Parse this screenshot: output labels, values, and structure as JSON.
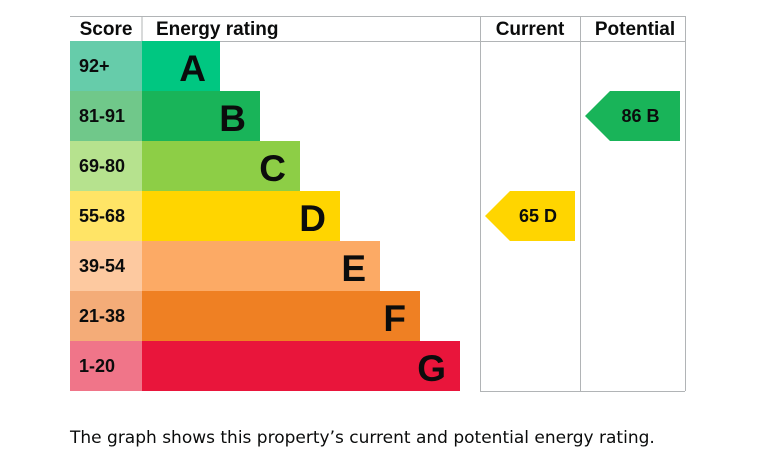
{
  "headers": {
    "score": "Score",
    "energy_rating": "Energy rating",
    "current": "Current",
    "potential": "Potential"
  },
  "chart_data": {
    "type": "bar",
    "categories": [
      "A",
      "B",
      "C",
      "D",
      "E",
      "F",
      "G"
    ],
    "score_ranges": [
      "92+",
      "81-91",
      "69-80",
      "55-68",
      "39-54",
      "21-38",
      "1-20"
    ],
    "band_colors": [
      "#00c781",
      "#19b459",
      "#8dce46",
      "#ffd500",
      "#fcaa65",
      "#ef8023",
      "#e9153b"
    ],
    "score_colors": [
      "#66ccaa",
      "#70c88a",
      "#b6e28e",
      "#ffe466",
      "#fdc9a0",
      "#f4ac78",
      "#f07589"
    ],
    "current": {
      "score": 65,
      "band": "D",
      "label": "65 D"
    },
    "potential": {
      "score": 86,
      "band": "B",
      "label": "86 B"
    }
  },
  "caption": "The graph shows this property’s current and potential energy rating."
}
